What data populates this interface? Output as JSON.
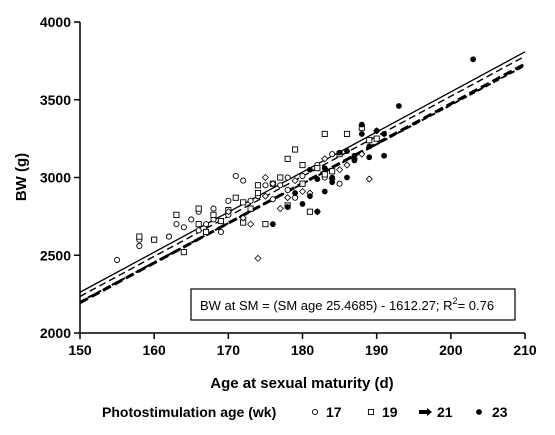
{
  "chart_data": {
    "type": "scatter",
    "xlabel": "Age at sexual maturity (d)",
    "ylabel": "BW (g)",
    "xlim": [
      150,
      210
    ],
    "ylim": [
      2000,
      4000
    ],
    "xticks": [
      150,
      160,
      170,
      180,
      190,
      200,
      210
    ],
    "yticks": [
      2000,
      2500,
      3000,
      3500,
      4000
    ],
    "grid": false,
    "legend": {
      "title": "Photostimulation age (wk)",
      "placement": "bottom",
      "entries": [
        {
          "label": "17",
          "marker": "open-circle"
        },
        {
          "label": "19",
          "marker": "open-square"
        },
        {
          "label": "21",
          "marker": "filled-diamond-arrow"
        },
        {
          "label": "23",
          "marker": "filled-circle"
        }
      ]
    },
    "annotation": {
      "text_main": "BW at SM = (SM age 25.4685) - 1612.27;  R",
      "text_sup": "2",
      "text_tail": "= 0.76"
    },
    "lines": [
      {
        "style": "solid",
        "width": 1.3,
        "x": [
          150,
          210
        ],
        "y": [
          2262,
          3808
        ]
      },
      {
        "style": "dashed-thin",
        "width": 1.4,
        "x": [
          150,
          210
        ],
        "y": [
          2235,
          3780
        ]
      },
      {
        "style": "dashed-bold",
        "width": 3,
        "x": [
          150,
          210
        ],
        "y": [
          2195,
          3730
        ]
      },
      {
        "style": "dashed-medium",
        "width": 2,
        "x": [
          150,
          210
        ],
        "y": [
          2200,
          3720
        ]
      }
    ],
    "series": [
      {
        "name": "17",
        "marker": "open-circle",
        "points": [
          [
            155,
            2470
          ],
          [
            158,
            2560
          ],
          [
            158,
            2600
          ],
          [
            160,
            2600
          ],
          [
            162,
            2620
          ],
          [
            163,
            2700
          ],
          [
            164,
            2680
          ],
          [
            165,
            2730
          ],
          [
            166,
            2660
          ],
          [
            166,
            2780
          ],
          [
            167,
            2700
          ],
          [
            168,
            2730
          ],
          [
            168,
            2800
          ],
          [
            169,
            2650
          ],
          [
            170,
            2760
          ],
          [
            170,
            2850
          ],
          [
            171,
            3010
          ],
          [
            172,
            2980
          ],
          [
            172,
            2720
          ],
          [
            173,
            2850
          ],
          [
            174,
            2880
          ],
          [
            175,
            2950
          ],
          [
            176,
            2860
          ],
          [
            177,
            2950
          ],
          [
            178,
            2920
          ],
          [
            178,
            3000
          ],
          [
            179,
            2870
          ],
          [
            180,
            3010
          ],
          [
            180,
            2960
          ],
          [
            182,
            3080
          ],
          [
            183,
            3000
          ],
          [
            184,
            3150
          ],
          [
            185,
            2960
          ]
        ]
      },
      {
        "name": "19",
        "marker": "open-square",
        "points": [
          [
            158,
            2620
          ],
          [
            160,
            2600
          ],
          [
            163,
            2760
          ],
          [
            164,
            2520
          ],
          [
            166,
            2700
          ],
          [
            166,
            2800
          ],
          [
            167,
            2650
          ],
          [
            168,
            2760
          ],
          [
            169,
            2720
          ],
          [
            170,
            2790
          ],
          [
            171,
            2870
          ],
          [
            172,
            2710
          ],
          [
            172,
            2840
          ],
          [
            173,
            2800
          ],
          [
            174,
            2900
          ],
          [
            174,
            2950
          ],
          [
            175,
            2700
          ],
          [
            176,
            2960
          ],
          [
            177,
            3000
          ],
          [
            178,
            3120
          ],
          [
            178,
            2820
          ],
          [
            179,
            3180
          ],
          [
            180,
            2960
          ],
          [
            180,
            3080
          ],
          [
            181,
            2780
          ],
          [
            182,
            3060
          ],
          [
            183,
            3280
          ],
          [
            183,
            3020
          ],
          [
            184,
            3040
          ],
          [
            185,
            3150
          ],
          [
            186,
            3280
          ],
          [
            188,
            3320
          ],
          [
            189,
            3240
          ],
          [
            190,
            3250
          ]
        ]
      },
      {
        "name": "21",
        "marker": "open-diamond",
        "points": [
          [
            170,
            2780
          ],
          [
            172,
            2740
          ],
          [
            173,
            2700
          ],
          [
            174,
            2480
          ],
          [
            175,
            2880
          ],
          [
            175,
            3000
          ],
          [
            176,
            2960
          ],
          [
            177,
            2800
          ],
          [
            178,
            2870
          ],
          [
            179,
            2980
          ],
          [
            180,
            2910
          ],
          [
            181,
            2900
          ],
          [
            182,
            2780
          ],
          [
            183,
            3120
          ],
          [
            184,
            2990
          ],
          [
            185,
            3050
          ],
          [
            186,
            3080
          ],
          [
            187,
            3120
          ],
          [
            188,
            3150
          ],
          [
            189,
            2990
          ],
          [
            190,
            3300
          ]
        ]
      },
      {
        "name": "23",
        "marker": "filled-circle",
        "points": [
          [
            176,
            2700
          ],
          [
            178,
            2810
          ],
          [
            179,
            2900
          ],
          [
            180,
            2830
          ],
          [
            181,
            2880
          ],
          [
            181,
            3050
          ],
          [
            182,
            2780
          ],
          [
            182,
            2990
          ],
          [
            183,
            3060
          ],
          [
            183,
            2910
          ],
          [
            184,
            3000
          ],
          [
            184,
            2970
          ],
          [
            185,
            3160
          ],
          [
            186,
            3170
          ],
          [
            186,
            3000
          ],
          [
            187,
            3140
          ],
          [
            187,
            3110
          ],
          [
            188,
            3280
          ],
          [
            188,
            3340
          ],
          [
            189,
            3200
          ],
          [
            189,
            3130
          ],
          [
            190,
            3300
          ],
          [
            191,
            3280
          ],
          [
            191,
            3140
          ],
          [
            193,
            3460
          ],
          [
            203,
            3760
          ]
        ]
      }
    ]
  }
}
